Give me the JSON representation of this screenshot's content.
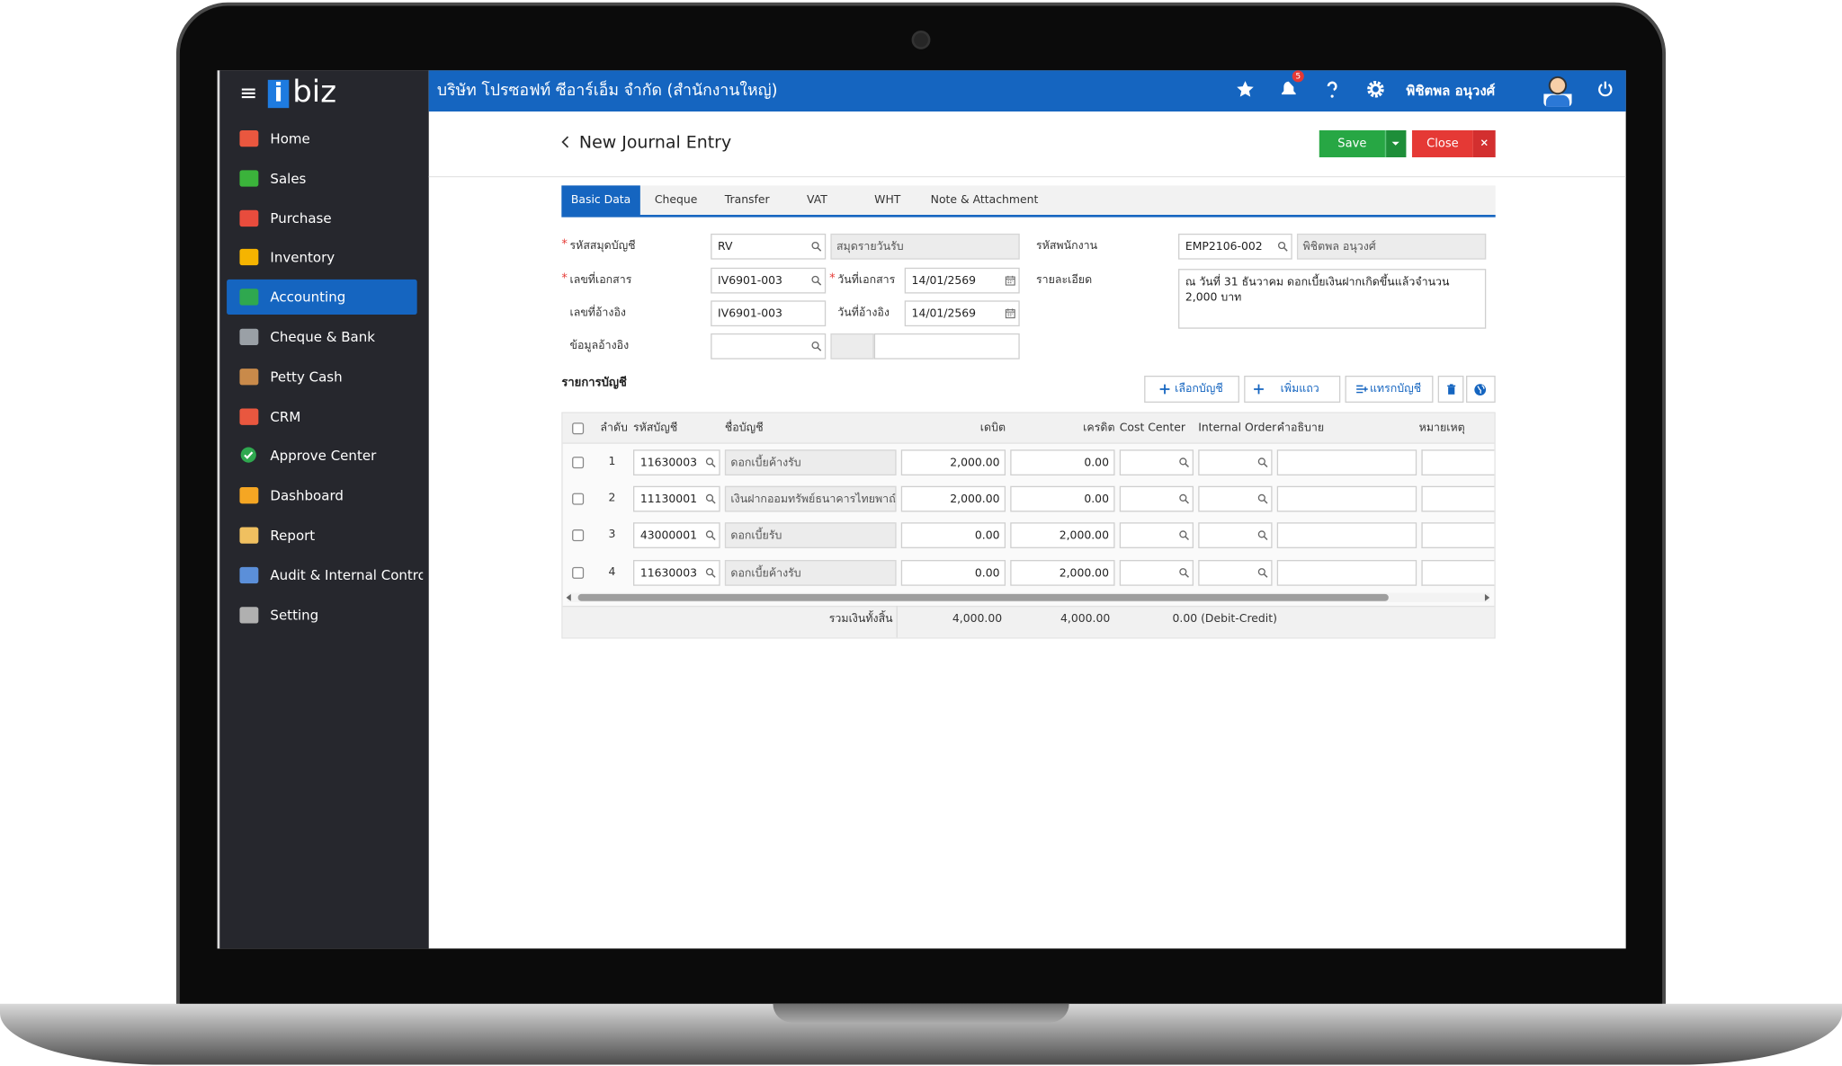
{
  "app": {
    "logo": [
      "i",
      "biz"
    ]
  },
  "header": {
    "company": "บริษัท โปรซอฟท์ ซีอาร์เอ็ม จำกัด (สำนักงานใหญ่)",
    "notifications": "5",
    "user": "พิชิตพล อนุวงศ์"
  },
  "menu": [
    {
      "label": "Home"
    },
    {
      "label": "Sales"
    },
    {
      "label": "Purchase"
    },
    {
      "label": "Inventory"
    },
    {
      "label": "Accounting",
      "active": true
    },
    {
      "label": "Cheque & Bank"
    },
    {
      "label": "Petty Cash"
    },
    {
      "label": "CRM"
    },
    {
      "label": "Approve Center"
    },
    {
      "label": "Dashboard"
    },
    {
      "label": "Report"
    },
    {
      "label": "Audit & Internal Control"
    },
    {
      "label": "Setting"
    }
  ],
  "page": {
    "title": "New Journal Entry",
    "save": "Save",
    "close": "Close"
  },
  "tabs": [
    {
      "label": "Basic Data",
      "active": true
    },
    {
      "label": "Cheque"
    },
    {
      "label": "Transfer"
    },
    {
      "label": "VAT"
    },
    {
      "label": "WHT"
    },
    {
      "label": "Note & Attachment"
    }
  ],
  "form": {
    "required_mark": "*",
    "journal_code": {
      "label": "รหัสสมุดบัญชี",
      "required": true,
      "value": "RV",
      "name": "สมุดรายวันรับ"
    },
    "doc_no": {
      "label": "เลขที่เอกสาร",
      "required": true,
      "value": "IV6901-003"
    },
    "doc_date": {
      "label": "วันที่เอกสาร",
      "required": true,
      "value": "14/01/2569"
    },
    "ref_no": {
      "label": "เลขที่อ้างอิง",
      "value": "IV6901-003"
    },
    "ref_date": {
      "label": "วันที่อ้างอิง",
      "value": "14/01/2569"
    },
    "ref_info": {
      "label": "ข้อมูลอ้างอิง"
    },
    "employee": {
      "label": "รหัสพนักงาน",
      "value": "EMP2106-002",
      "name": "พิชิตพล อนุวงศ์"
    },
    "details": {
      "label": "รายละเอียด",
      "value": "ณ วันที่ 31 ธันวาคม ดอกเบี้ยเงินฝากเกิดขึ้นแล้วจำนวน 2,000 บาท"
    }
  },
  "lines": {
    "title": "รายการบัญชี",
    "buttons": [
      "เลือกบัญชี",
      "เพิ่มแถว",
      "แทรกบัญชี"
    ],
    "columns": [
      "ลำดับ",
      "รหัสบัญชี",
      "ชื่อบัญชี",
      "เดบิต",
      "เครดิต",
      "Cost Center",
      "Internal Order",
      "คำอธิบาย",
      "หมายเหตุ"
    ],
    "rows": [
      [
        "1",
        "11630003",
        "ดอกเบี้ยค้างรับ",
        "2,000.00",
        "0.00"
      ],
      [
        "2",
        "11130001",
        "เงินฝากออมทรัพย์ธนาคารไทยพาณิ",
        "2,000.00",
        "0.00"
      ],
      [
        "3",
        "43000001",
        "ดอกเบี้ยรับ",
        "0.00",
        "2,000.00"
      ],
      [
        "4",
        "11630003",
        "ดอกเบี้ยค้างรับ",
        "0.00",
        "2,000.00"
      ]
    ],
    "total_label": "รวมเงินทั้งสิ้น",
    "total_debit": "4,000.00",
    "total_credit": "4,000.00",
    "difference": "0.00 (Debit-Credit)"
  }
}
